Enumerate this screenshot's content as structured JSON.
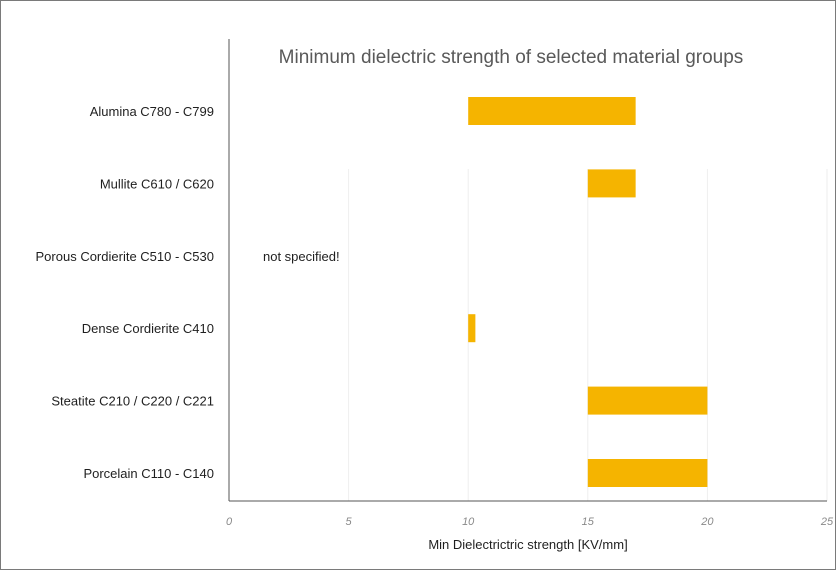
{
  "chart_data": {
    "type": "bar",
    "orientation": "horizontal",
    "floating_bars": true,
    "title": "Minimum dielectric strength of selected material groups",
    "xlabel": "Min Dielectrictric strength [KV/mm]",
    "ylabel": "",
    "xlim": [
      0,
      25
    ],
    "xticks": [
      0,
      5,
      10,
      15,
      20,
      25
    ],
    "xtick_labels": [
      "0",
      "5",
      "10",
      "15",
      "20",
      "25"
    ],
    "grid": "vertical",
    "legend": "none",
    "bar_color": "#f5b400",
    "categories": [
      "Alumina C780 - C799",
      "Mullite C610 / C620",
      "Porous Cordierite C510 - C530",
      "Dense Cordierite C410",
      "Steatite C210 / C220 / C221",
      "Porcelain C110 - C140"
    ],
    "ranges": [
      [
        10,
        17
      ],
      [
        15,
        17
      ],
      null,
      [
        10,
        10.3
      ],
      [
        15,
        20
      ],
      [
        15,
        20
      ]
    ],
    "annotations": [
      {
        "category": "Porous Cordierite C510 - C530",
        "text": "not specified!"
      }
    ]
  }
}
